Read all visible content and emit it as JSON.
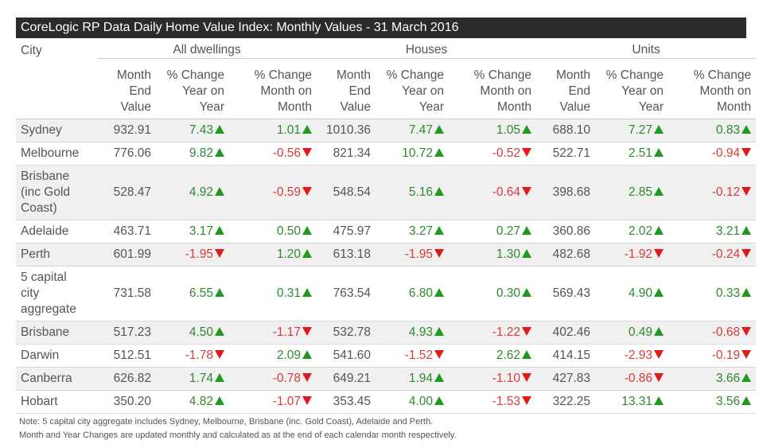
{
  "title": "CoreLogic RP Data Daily Home Value Index: Monthly Values - 31 March 2016",
  "headers": {
    "city": "City",
    "groups": [
      "All dwellings",
      "Houses",
      "Units"
    ],
    "month_end_value": [
      "Month",
      "End",
      "Value"
    ],
    "change_year": [
      "% Change",
      "Year on",
      "Year"
    ],
    "change_month": [
      "% Change",
      "Month on",
      "Month"
    ]
  },
  "rows": [
    {
      "city": "Sydney",
      "cells": [
        "932.91",
        "7.43",
        "1.01",
        "1010.36",
        "7.47",
        "1.05",
        "688.10",
        "7.27",
        "0.83"
      ]
    },
    {
      "city": "Melbourne",
      "cells": [
        "776.06",
        "9.82",
        "-0.56",
        "821.34",
        "10.72",
        "-0.52",
        "522.71",
        "2.51",
        "-0.94"
      ]
    },
    {
      "city": "Brisbane (inc Gold Coast)",
      "cells": [
        "528.47",
        "4.92",
        "-0.59",
        "548.54",
        "5.16",
        "-0.64",
        "398.68",
        "2.85",
        "-0.12"
      ]
    },
    {
      "city": "Adelaide",
      "cells": [
        "463.71",
        "3.17",
        "0.50",
        "475.97",
        "3.27",
        "0.27",
        "360.86",
        "2.02",
        "3.21"
      ]
    },
    {
      "city": "Perth",
      "cells": [
        "601.99",
        "-1.95",
        "1.20",
        "613.18",
        "-1.95",
        "1.30",
        "482.68",
        "-1.92",
        "-0.24"
      ]
    },
    {
      "city": "5 capital city aggregate",
      "cells": [
        "731.58",
        "6.55",
        "0.31",
        "763.54",
        "6.80",
        "0.30",
        "569.43",
        "4.90",
        "0.33"
      ]
    },
    {
      "city": "Brisbane",
      "cells": [
        "517.23",
        "4.50",
        "-1.17",
        "532.78",
        "4.93",
        "-1.22",
        "402.46",
        "0.49",
        "-0.68"
      ]
    },
    {
      "city": "Darwin",
      "cells": [
        "512.51",
        "-1.78",
        "2.09",
        "541.60",
        "-1.52",
        "2.62",
        "414.15",
        "-2.93",
        "-0.19"
      ]
    },
    {
      "city": "Canberra",
      "cells": [
        "626.82",
        "1.74",
        "-0.78",
        "649.21",
        "1.94",
        "-1.10",
        "427.83",
        "-0.86",
        "3.66"
      ]
    },
    {
      "city": "Hobart",
      "cells": [
        "350.20",
        "4.82",
        "-1.07",
        "353.45",
        "4.00",
        "-1.53",
        "322.25",
        "13.31",
        "3.56"
      ]
    }
  ],
  "notes": [
    "Note: 5 capital city aggregate includes Sydney, Melbourne, Brisbane (inc. Gold Coast), Adelaide and Perth.",
    "Month and Year Changes are updated monthly and calculated as at the end of each calendar month respectively."
  ],
  "colors": {
    "positive": "#2f8a2f",
    "negative": "#d93a3a",
    "arrow_up": "#1f9a1f",
    "arrow_down": "#e01b1b",
    "header_bg": "#2b2b2b"
  }
}
